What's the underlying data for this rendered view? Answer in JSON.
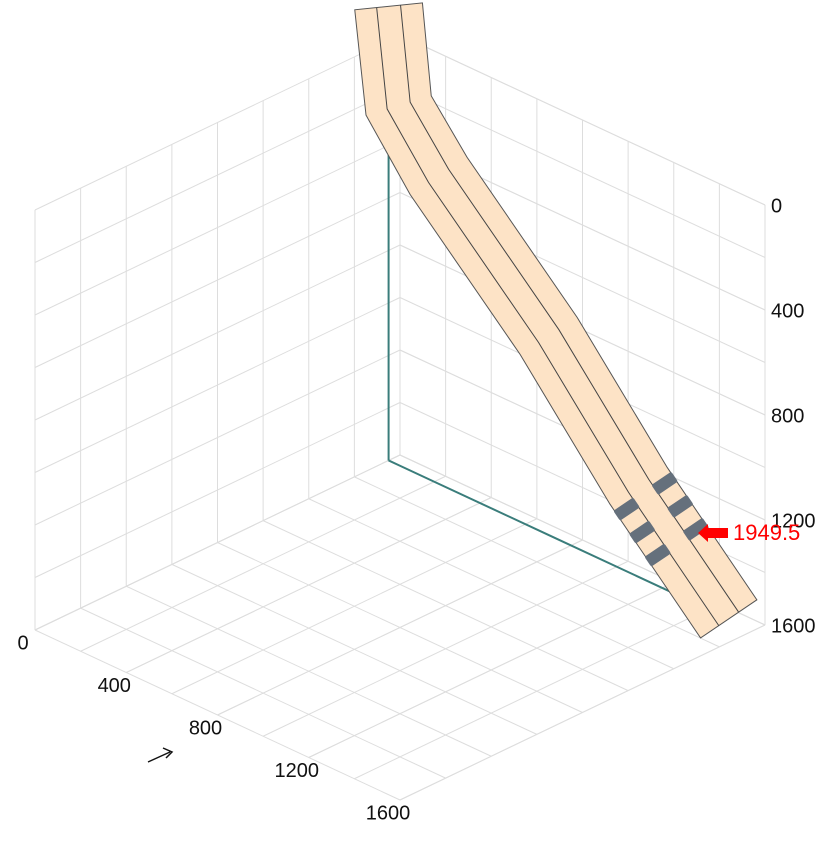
{
  "chart_data": {
    "type": "wellbore3d",
    "x_ticks": [
      0,
      400,
      800,
      1200,
      1600
    ],
    "xlim": [
      0,
      1600
    ],
    "nlim": [
      0,
      1600
    ],
    "depth_ticks": [
      0,
      400,
      800,
      1200,
      1600
    ],
    "depth_lim": [
      0,
      1600
    ],
    "trajectory": {
      "color": "#3a7d7b",
      "band_color": "#fde3c6",
      "x": [
        0,
        44,
        219,
        702,
        1096,
        1491
      ],
      "n": [
        1550,
        1550,
        1550,
        1550,
        1550,
        1550
      ],
      "depth": [
        -130,
        230,
        427,
        842,
        1253,
        1600
      ]
    },
    "perforations": [
      1280,
      1340,
      1400
    ],
    "annotation": "1949.5",
    "annotation_color": "#ff0000"
  }
}
